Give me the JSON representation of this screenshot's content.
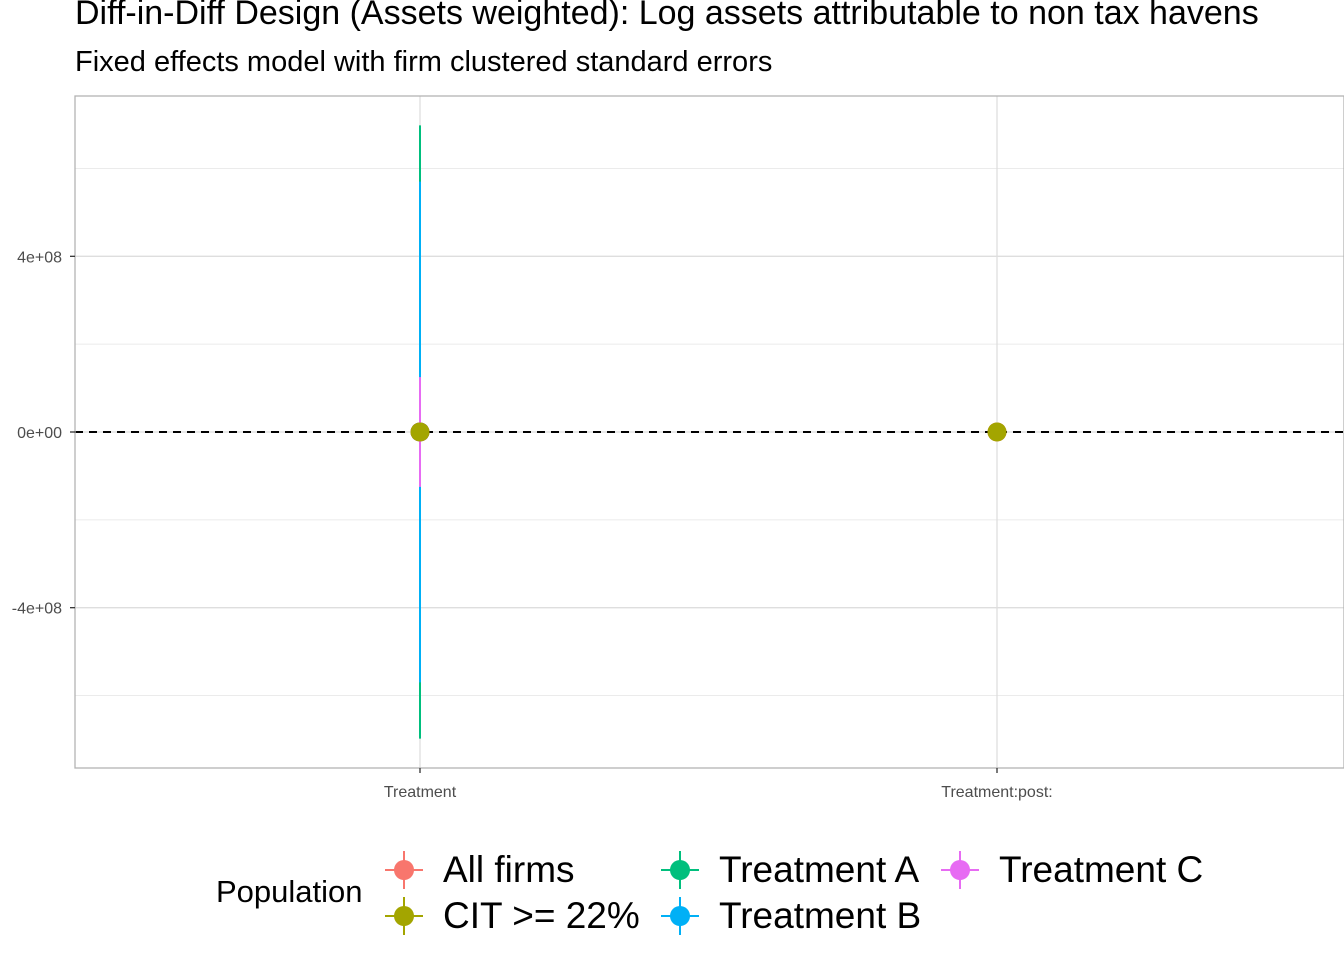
{
  "chart_data": {
    "type": "scatter",
    "title": "Diff-in-Diff Design (Assets weighted): Log assets attributable to non tax havens",
    "subtitle": "Fixed effects model with firm clustered standard errors",
    "xlabel": "",
    "ylabel": "",
    "categories": [
      "Treatment",
      "Treatment:post:"
    ],
    "y_ticks": [
      {
        "value": 400000000,
        "label": "4e+08"
      },
      {
        "value": 0,
        "label": "0e+00"
      },
      {
        "value": -400000000,
        "label": "-4e+08"
      }
    ],
    "ylim": [
      -765000000,
      765000000
    ],
    "grid": true,
    "reference_line": {
      "y": 0,
      "style": "dashed"
    },
    "legend": {
      "title": "Population",
      "position": "bottom"
    },
    "series": [
      {
        "name": "All firms",
        "color": "#F8766D",
        "points": [
          {
            "x": "Treatment",
            "y": 0,
            "ymin": 0,
            "ymax": 0
          },
          {
            "x": "Treatment:post:",
            "y": 0,
            "ymin": 0,
            "ymax": 0
          }
        ]
      },
      {
        "name": "CIT >= 22%",
        "color": "#A3A500",
        "points": [
          {
            "x": "Treatment",
            "y": 0,
            "ymin": 0,
            "ymax": 0
          },
          {
            "x": "Treatment:post:",
            "y": 0,
            "ymin": 0,
            "ymax": 0
          }
        ]
      },
      {
        "name": "Treatment A",
        "color": "#00BF7D",
        "points": [
          {
            "x": "Treatment",
            "y": 0,
            "ymin": -698000000,
            "ymax": 698000000
          }
        ]
      },
      {
        "name": "Treatment B",
        "color": "#00B0F6",
        "points": [
          {
            "x": "Treatment",
            "y": 0,
            "ymin": -570000000,
            "ymax": 570000000
          }
        ]
      },
      {
        "name": "Treatment C",
        "color": "#E76BF3",
        "points": [
          {
            "x": "Treatment",
            "y": 0,
            "ymin": -125000000,
            "ymax": 125000000
          }
        ]
      }
    ],
    "draw_order": [
      "Treatment A",
      "Treatment B",
      "Treatment C",
      "All firms",
      "CIT >= 22%"
    ]
  }
}
